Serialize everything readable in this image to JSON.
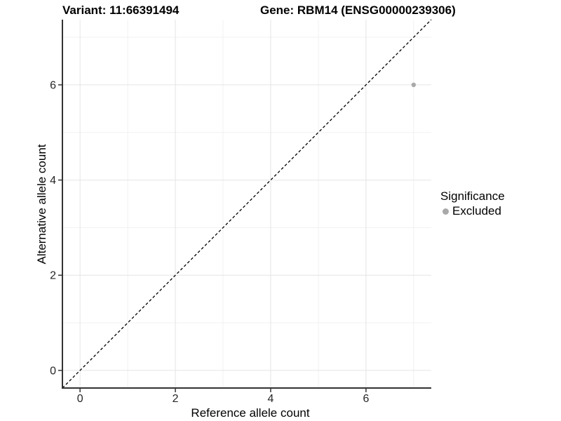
{
  "page": {
    "background": "#ffffff"
  },
  "header": {
    "title_left": "Variant: 11:66391494",
    "title_right": "Gene: RBM14 (ENSG00000239306)"
  },
  "chart_data": {
    "type": "scatter",
    "title_left": "Variant: 11:66391494",
    "title_right": "Gene: RBM14 (ENSG00000239306)",
    "xlabel": "Reference allele count",
    "ylabel": "Alternative allele count",
    "xlim": [
      -0.37,
      7.37
    ],
    "ylim": [
      -0.37,
      7.37
    ],
    "x_ticks": [
      0,
      2,
      4,
      6
    ],
    "y_ticks": [
      0,
      2,
      4,
      6
    ],
    "x_minor_ticks": [
      1,
      3,
      5,
      7
    ],
    "y_minor_ticks": [
      1,
      3,
      5,
      7
    ],
    "grid": {
      "on": true,
      "major_color": "#e4e4e4",
      "minor_color": "#f1f1f1"
    },
    "axis_line_color": "#333333",
    "tick_label_color": "#262626",
    "identity_line": {
      "style": "dashed",
      "color": "#000000",
      "from": [
        -0.37,
        -0.37
      ],
      "to": [
        7.37,
        7.37
      ]
    },
    "series": [
      {
        "name": "Excluded",
        "color": "#a9a9a9",
        "points": [
          {
            "x": 7,
            "y": 6
          }
        ]
      }
    ],
    "legend": {
      "position": "right-center",
      "title": "Significance",
      "items": [
        {
          "label": "Excluded",
          "color": "#a9a9a9",
          "marker": "circle"
        }
      ]
    }
  }
}
